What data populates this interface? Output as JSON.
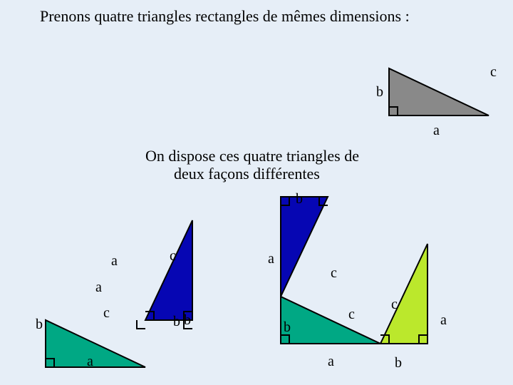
{
  "colors": {
    "background": "#e6eef7",
    "grey_fill": "#898989",
    "blue_fill": "#0606b3",
    "teal_fill": "#00a884",
    "lime_fill": "#bbe82c",
    "stroke": "#000000",
    "text": "#000000"
  },
  "geometry": {
    "a": 140,
    "b": 66,
    "stroke_width": 2,
    "right_angle_size": 12
  },
  "titles": {
    "line1": "Prenons quatre triangles rectangles de mêmes dimensions :",
    "line2": "On dispose ces quatre triangles de",
    "line3": "deux façons différentes",
    "title_fontsize": 22
  },
  "labels": {
    "a": "a",
    "b": "b",
    "c": "c",
    "label_fontsize": 20
  }
}
